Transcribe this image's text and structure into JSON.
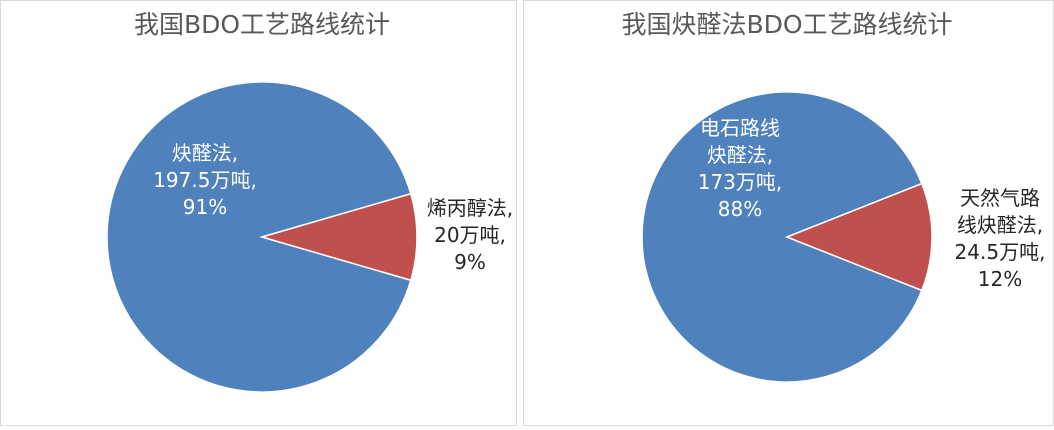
{
  "chart_data": [
    {
      "type": "pie",
      "title": "我国BDO工艺路线统计",
      "categories": [
        "炔醛法,",
        "烯丙醇法,"
      ],
      "tonnage_labels": [
        "197.5万吨,",
        "20万吨,"
      ],
      "values": [
        91,
        9
      ],
      "value_labels": [
        "91%",
        "9%"
      ],
      "colors": [
        "#4f81bd",
        "#c0504d"
      ]
    },
    {
      "type": "pie",
      "title": "我国炔醛法BDO工艺路线统计",
      "categories": [
        "电石路线\n炔醛法,",
        "天然气路\n线炔醛法,"
      ],
      "tonnage_labels": [
        "173万吨,",
        "24.5万吨,"
      ],
      "values": [
        88,
        12
      ],
      "value_labels": [
        "88%",
        "12%"
      ],
      "colors": [
        "#4f81bd",
        "#c0504d"
      ]
    }
  ]
}
